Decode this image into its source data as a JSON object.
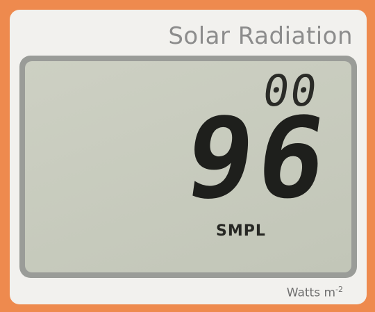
{
  "header": {
    "title": "Solar Radiation"
  },
  "display": {
    "small_digits": "00",
    "main_reading": "96",
    "mode": "SMPL"
  },
  "footer": {
    "unit": "Watts m",
    "unit_exponent": "-2"
  }
}
